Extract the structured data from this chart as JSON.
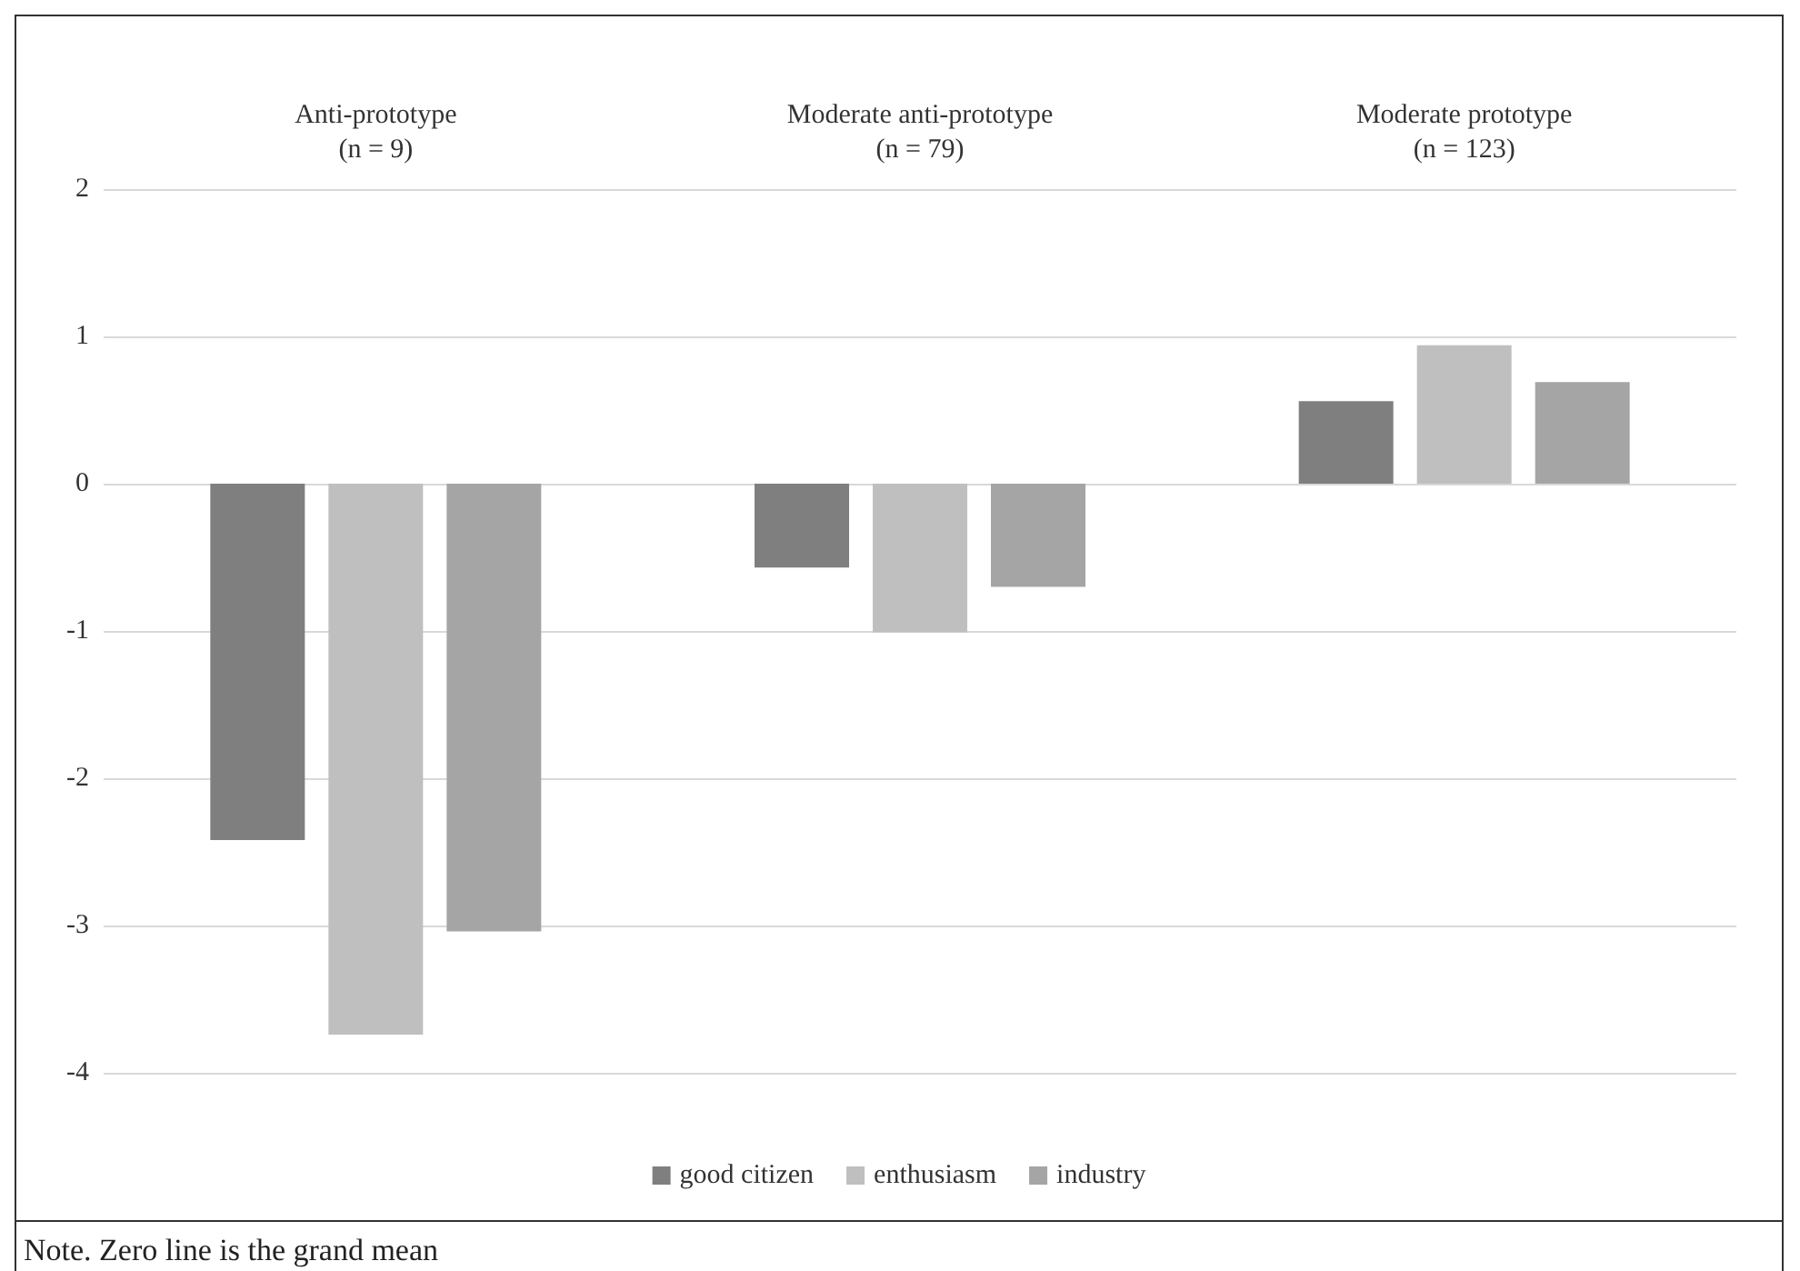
{
  "chart_data": {
    "type": "bar",
    "categories": [
      "Anti-prototype\n(n = 9)",
      "Moderate anti-prototype\n(n = 79)",
      "Moderate prototype\n(n = 123)"
    ],
    "series": [
      {
        "name": "good citizen",
        "color": "#7f7f7f",
        "values": [
          -2.42,
          -0.57,
          0.56
        ]
      },
      {
        "name": "enthusiasm",
        "color": "#bfbfbf",
        "values": [
          -3.74,
          -1.01,
          0.94
        ]
      },
      {
        "name": "industry",
        "color": "#a5a5a5",
        "values": [
          -3.04,
          -0.7,
          0.69
        ]
      }
    ],
    "ylim": [
      -4,
      2
    ],
    "yticks": [
      -4,
      -3,
      -2,
      -1,
      0,
      1,
      2
    ],
    "grid": "y",
    "legend": "bottom",
    "annotations": [
      "Note. Zero line is the grand mean"
    ]
  }
}
